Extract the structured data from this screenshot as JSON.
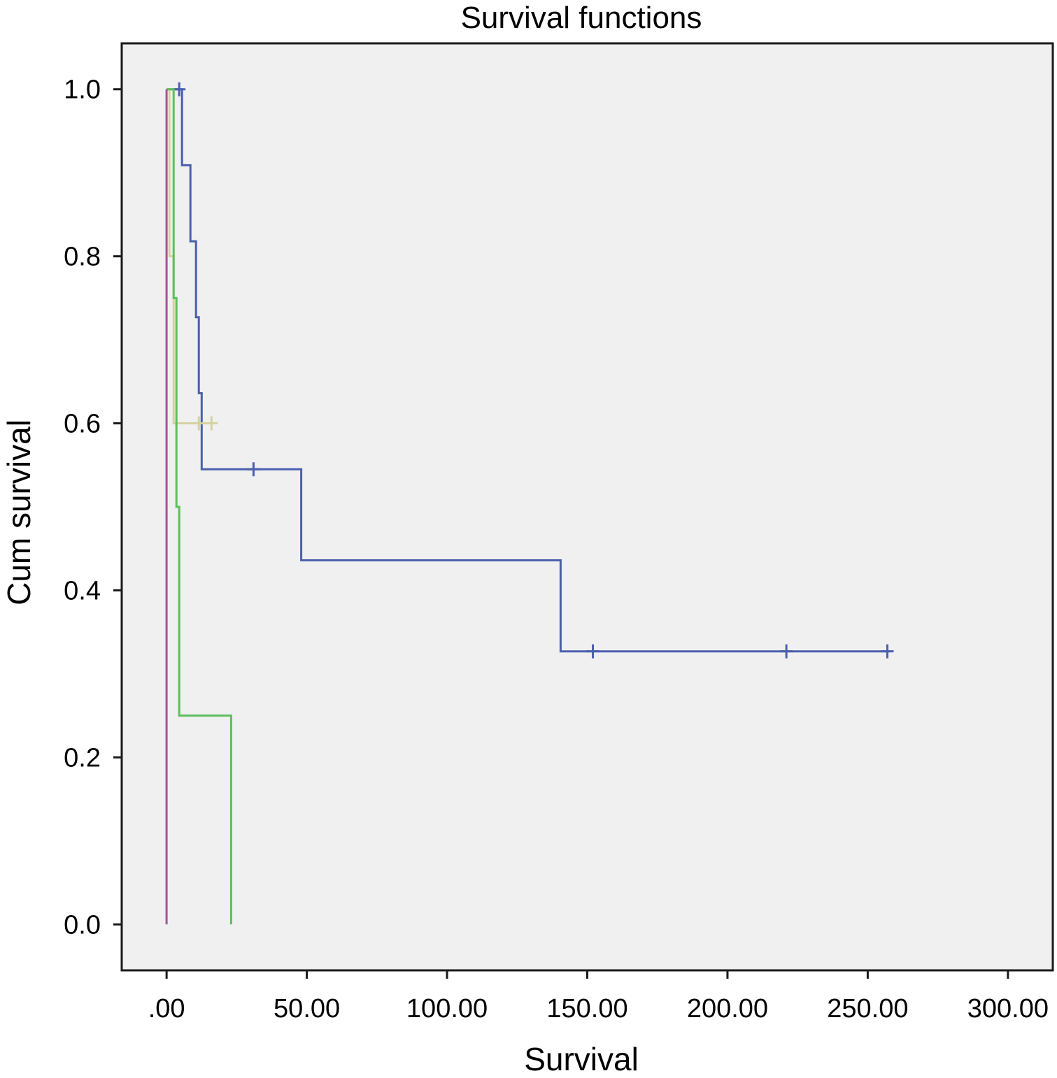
{
  "chart_data": {
    "type": "line",
    "title": "Survival functions",
    "xlabel": "Survival",
    "ylabel": "Cum survival",
    "xlim": [
      -16,
      316
    ],
    "ylim": [
      -0.055,
      1.055
    ],
    "xticks": [
      0,
      50,
      100,
      150,
      200,
      250,
      300
    ],
    "xtick_labels": [
      ".00",
      "50.00",
      "100.00",
      "150.00",
      "200.00",
      "250.00",
      "300.00"
    ],
    "yticks": [
      0.0,
      0.2,
      0.4,
      0.6,
      0.8,
      1.0
    ],
    "ytick_labels": [
      "0.0",
      "0.2",
      "0.4",
      "0.6",
      "0.8",
      "1.0"
    ],
    "grid": false,
    "background": "#f0f0f0",
    "series": [
      {
        "color": "#4a5fae",
        "x": [
          0,
          5.5,
          5.5,
          8.5,
          8.5,
          10.5,
          10.5,
          11.5,
          11.5,
          12.5,
          12.5,
          48,
          48,
          140.5,
          140.5,
          258
        ],
        "y": [
          1.0,
          1.0,
          0.909,
          0.909,
          0.818,
          0.818,
          0.727,
          0.727,
          0.636,
          0.636,
          0.545,
          0.545,
          0.436,
          0.436,
          0.327,
          0.327
        ],
        "censored": [
          [
            4.5,
            1.0
          ],
          [
            31,
            0.545
          ],
          [
            152,
            0.327
          ],
          [
            221,
            0.327
          ],
          [
            257,
            0.327
          ]
        ]
      },
      {
        "color": "#d6d1a2",
        "x": [
          0,
          1,
          1,
          2.5,
          2.5,
          16
        ],
        "y": [
          1.0,
          1.0,
          0.8,
          0.8,
          0.6,
          0.6
        ],
        "censored": [
          [
            11.5,
            0.6
          ],
          [
            16,
            0.6
          ]
        ]
      },
      {
        "color": "#5bbf5b",
        "x": [
          0,
          2.5,
          2.5,
          3.5,
          3.5,
          4.5,
          4.5,
          23,
          23
        ],
        "y": [
          1.0,
          1.0,
          0.75,
          0.75,
          0.5,
          0.5,
          0.25,
          0.25,
          0.0
        ],
        "censored": []
      },
      {
        "color": "#a0559a",
        "x": [
          0,
          0
        ],
        "y": [
          1.0,
          0.0
        ],
        "censored": []
      }
    ]
  }
}
